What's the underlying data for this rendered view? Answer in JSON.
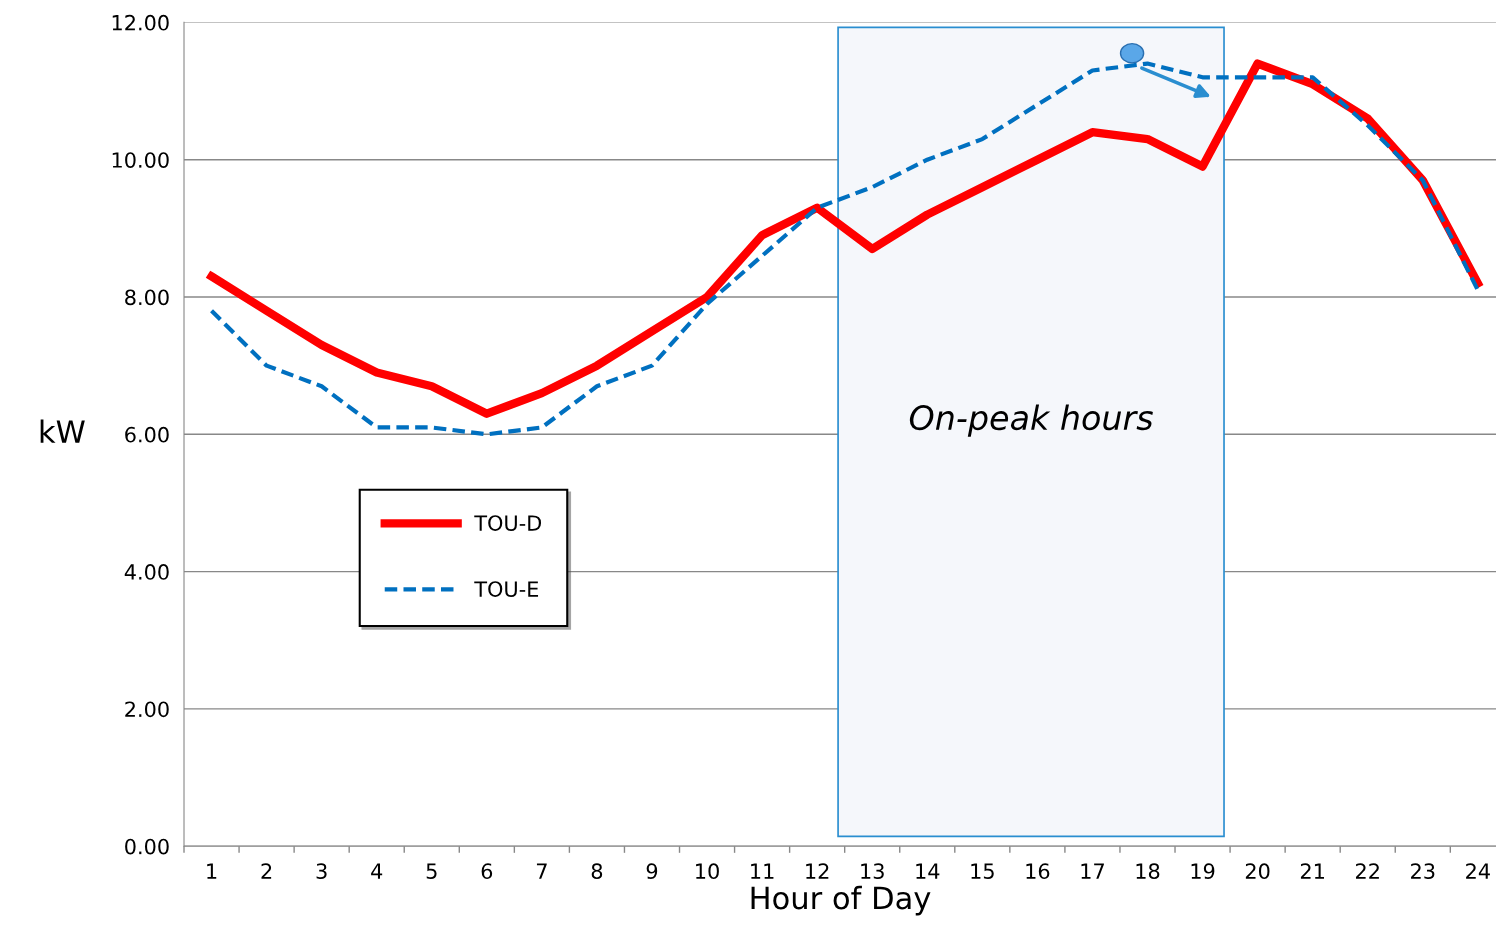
{
  "chart_data": {
    "type": "line",
    "xlabel": "Hour of Day",
    "ylabel": "kW",
    "x": [
      1,
      2,
      3,
      4,
      5,
      6,
      7,
      8,
      9,
      10,
      11,
      12,
      13,
      14,
      15,
      16,
      17,
      18,
      19,
      20,
      21,
      22,
      23,
      24
    ],
    "xlim": [
      0.5,
      24.33
    ],
    "xticks": [
      1,
      2,
      3,
      4,
      5,
      6,
      7,
      8,
      9,
      10,
      11,
      12,
      13,
      14,
      15,
      16,
      17,
      18,
      19,
      20,
      21,
      22,
      23,
      24
    ],
    "ylim": [
      0,
      12
    ],
    "yticks": [
      {
        "value": 0,
        "label": "0.00"
      },
      {
        "value": 2,
        "label": "2.00"
      },
      {
        "value": 4,
        "label": "4.00"
      },
      {
        "value": 6,
        "label": "6.00"
      },
      {
        "value": 8,
        "label": "8.00"
      },
      {
        "value": 10,
        "label": "10.00"
      },
      {
        "value": 12,
        "label": "12.00"
      }
    ],
    "grid": "y",
    "legend": "left",
    "marker": "none",
    "series": [
      {
        "name": "TOU-D",
        "color": "#ff0000",
        "line_style": "solid",
        "values": [
          8.3,
          7.8,
          7.3,
          6.9,
          6.7,
          6.3,
          6.6,
          7.0,
          7.5,
          8.0,
          8.9,
          9.3,
          8.7,
          9.2,
          9.6,
          10.0,
          10.4,
          10.3,
          9.9,
          11.4,
          11.1,
          10.6,
          9.7,
          8.2
        ]
      },
      {
        "name": "TOU-E",
        "color": "#0070c0",
        "line_style": "dashed",
        "values": [
          7.8,
          7.0,
          6.7,
          6.1,
          6.1,
          6.0,
          6.1,
          6.7,
          7.0,
          7.9,
          8.6,
          9.3,
          9.6,
          10.0,
          10.3,
          10.8,
          11.3,
          11.4,
          11.2,
          11.2,
          11.2,
          10.5,
          9.7,
          8.1
        ]
      }
    ],
    "bands": [
      {
        "axis": "x",
        "from": 12.38,
        "to": 19.39,
        "label": "On-peak hours",
        "color": "#f5f7fb"
      }
    ]
  }
}
